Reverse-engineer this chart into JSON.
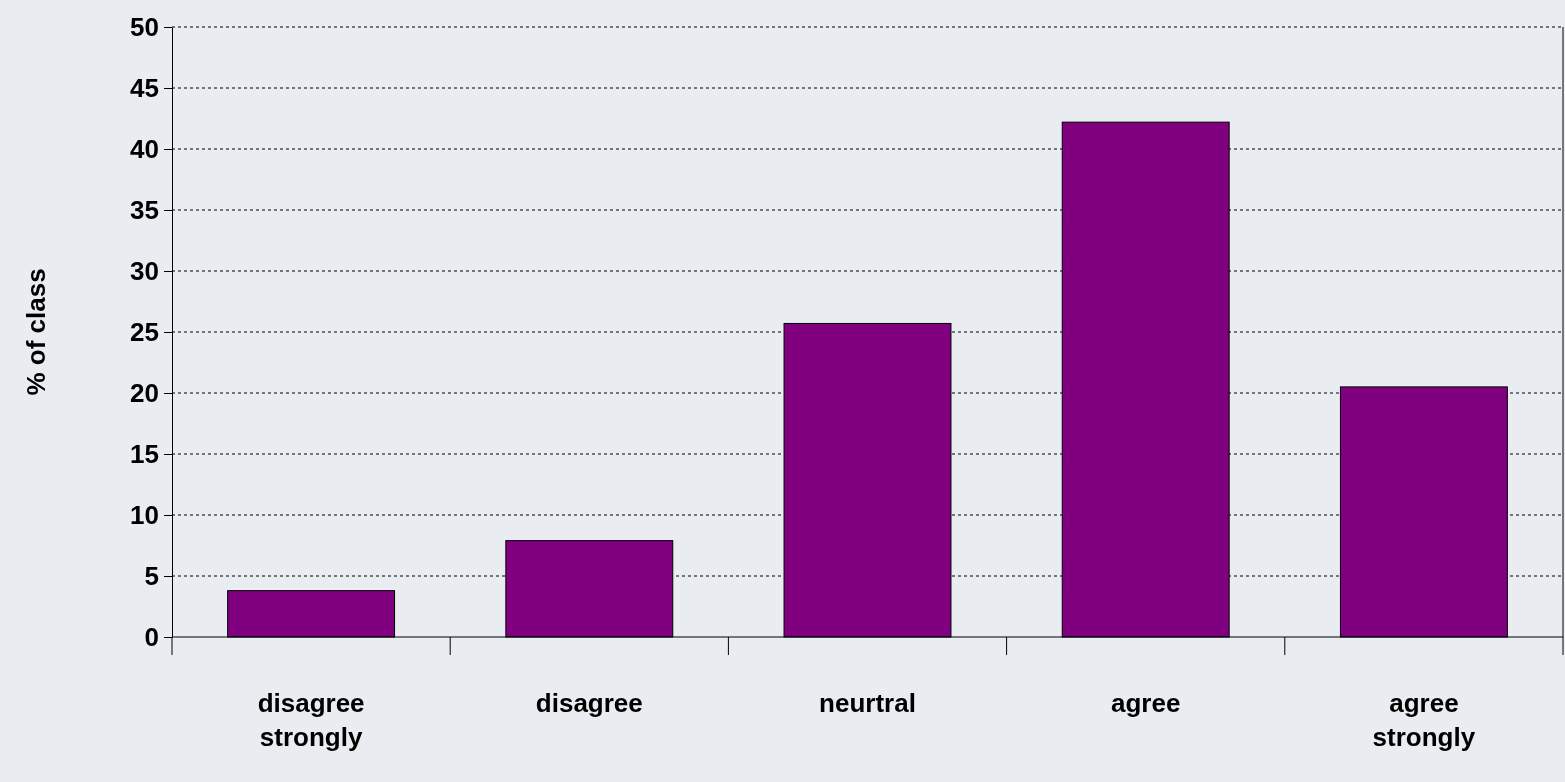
{
  "chart_data": {
    "type": "bar",
    "ylabel": "% of class",
    "categories": [
      "disagree strongly",
      "disagree",
      "neurtral",
      "agree",
      "agree strongly"
    ],
    "values": [
      3.8,
      7.9,
      25.7,
      42.2,
      20.5
    ],
    "color": "#800080",
    "ylim": [
      0,
      50
    ],
    "yticks": [
      0,
      5,
      10,
      15,
      20,
      25,
      30,
      35,
      40,
      45,
      50
    ],
    "grid": "y"
  }
}
